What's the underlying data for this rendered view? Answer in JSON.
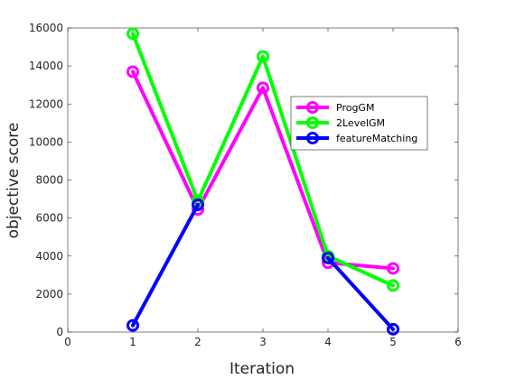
{
  "chart_data": {
    "type": "line",
    "title": "",
    "xlabel": "Iteration",
    "ylabel": "objective score",
    "xlim": [
      0,
      6
    ],
    "ylim": [
      0,
      16000
    ],
    "xticks": [
      0,
      1,
      2,
      3,
      4,
      5,
      6
    ],
    "yticks": [
      0,
      2000,
      4000,
      6000,
      8000,
      10000,
      12000,
      14000,
      16000
    ],
    "grid": false,
    "legend": "top-right (inside, centered right)",
    "x": [
      1,
      2,
      3,
      4,
      5
    ],
    "series": [
      {
        "name": "ProgGM",
        "color": "#ff00ff",
        "values": [
          13700,
          6450,
          12850,
          3650,
          3350
        ]
      },
      {
        "name": "2LevelGM",
        "color": "#00ff00",
        "values": [
          15700,
          6900,
          14500,
          4000,
          2450
        ]
      },
      {
        "name": "featureMatching",
        "color": "#0000ff",
        "values": [
          350,
          6700,
          null,
          3900,
          150
        ]
      }
    ],
    "marker": "circle"
  }
}
